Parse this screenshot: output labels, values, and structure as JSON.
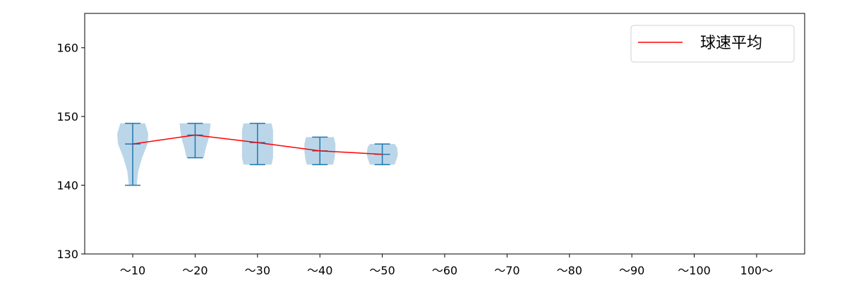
{
  "chart_data": {
    "type": "violin",
    "title": "",
    "xlabel": "",
    "ylabel": "",
    "categories": [
      "～10",
      "～20",
      "～30",
      "～40",
      "～50",
      "～60",
      "～70",
      "～80",
      "～90",
      "～100",
      "100～"
    ],
    "ylim": [
      130,
      165
    ],
    "yticks": [
      130,
      140,
      150,
      160
    ],
    "grid": false,
    "violin_color": "#1f77b4",
    "mean_line_color": "#ff0000",
    "violins": [
      {
        "category": "～10",
        "min": 140,
        "max": 149,
        "mean": 146.0,
        "profile": [
          [
            140,
            0.25
          ],
          [
            142,
            0.35
          ],
          [
            144,
            0.6
          ],
          [
            146,
            0.95
          ],
          [
            147.5,
            1.0
          ],
          [
            149,
            0.8
          ]
        ]
      },
      {
        "category": "～20",
        "min": 144,
        "max": 149,
        "mean": 147.3,
        "profile": [
          [
            144,
            0.55
          ],
          [
            145.5,
            0.7
          ],
          [
            147,
            0.9
          ],
          [
            149,
            1.0
          ]
        ]
      },
      {
        "category": "～30",
        "min": 143,
        "max": 149,
        "mean": 146.2,
        "profile": [
          [
            143,
            0.9
          ],
          [
            144,
            1.0
          ],
          [
            146,
            1.0
          ],
          [
            148,
            1.0
          ],
          [
            149,
            0.9
          ]
        ]
      },
      {
        "category": "～40",
        "min": 143,
        "max": 147,
        "mean": 145.0,
        "profile": [
          [
            143,
            0.85
          ],
          [
            144,
            0.95
          ],
          [
            145,
            1.0
          ],
          [
            146,
            1.0
          ],
          [
            147,
            0.9
          ]
        ]
      },
      {
        "category": "～50",
        "min": 143,
        "max": 146,
        "mean": 144.5,
        "profile": [
          [
            143,
            0.8
          ],
          [
            144,
            0.95
          ],
          [
            144.5,
            1.0
          ],
          [
            145.5,
            0.95
          ],
          [
            146,
            0.8
          ]
        ]
      }
    ],
    "series": [
      {
        "name": "球速平均",
        "categories": [
          "～10",
          "～20",
          "～30",
          "～40",
          "～50"
        ],
        "values": [
          146.0,
          147.3,
          146.2,
          145.0,
          144.5
        ]
      }
    ],
    "legend": {
      "placement": "top-right",
      "entries": [
        "球速平均"
      ]
    }
  }
}
